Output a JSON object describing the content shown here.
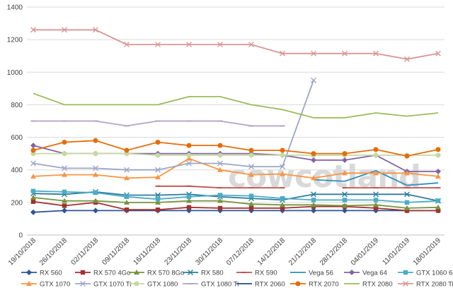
{
  "watermark": "cowcotland",
  "chart_data": {
    "type": "line",
    "ylim": [
      0,
      1400
    ],
    "yticks": [
      0,
      200,
      400,
      600,
      800,
      1000,
      1200,
      1400
    ],
    "grid": "horizontal",
    "legend_position": "bottom",
    "categories": [
      "19/10/2018",
      "26/10/2018",
      "02/11/2018",
      "09/11/2018",
      "16/11/2018",
      "23/11/2018",
      "30/11/2018",
      "07/12/2018",
      "14/12/2018",
      "21/12/2018",
      "28/12/2018",
      "04/01/2019",
      "11/01/2019",
      "18/01/2019"
    ],
    "series": [
      {
        "name": "RX 560",
        "color": "#2F5597",
        "marker": "diamond",
        "values": [
          140,
          150,
          150,
          150,
          150,
          150,
          150,
          150,
          150,
          150,
          150,
          150,
          150,
          150
        ]
      },
      {
        "name": "RX 570 4Go",
        "color": "#A0312E",
        "marker": "square",
        "values": [
          205,
          180,
          200,
          155,
          155,
          170,
          165,
          165,
          165,
          175,
          175,
          165,
          150,
          150
        ]
      },
      {
        "name": "RX 570 8Go",
        "color": "#77933C",
        "marker": "triangle",
        "values": [
          230,
          210,
          210,
          200,
          200,
          210,
          210,
          190,
          185,
          185,
          180,
          185,
          165,
          170
        ]
      },
      {
        "name": "RX 580",
        "color": "#2E7C9C",
        "marker": "x",
        "values": [
          255,
          250,
          265,
          245,
          245,
          250,
          235,
          225,
          215,
          250,
          250,
          250,
          250,
          210
        ]
      },
      {
        "name": "RX 590",
        "color": "#C0504D",
        "marker": "dash",
        "values": [
          null,
          null,
          null,
          null,
          300,
          300,
          290,
          290,
          290,
          null,
          290,
          290,
          290,
          290
        ]
      },
      {
        "name": "Vega 56",
        "color": "#2E8FBF",
        "marker": "line",
        "values": [
          null,
          null,
          null,
          null,
          null,
          null,
          null,
          null,
          null,
          340,
          330,
          395,
          305,
          320
        ]
      },
      {
        "name": "Vega 64",
        "color": "#8064A2",
        "marker": "diamond",
        "values": [
          550,
          500,
          500,
          500,
          500,
          500,
          500,
          500,
          490,
          460,
          460,
          490,
          390,
          390
        ]
      },
      {
        "name": "GTX 1060 6Go",
        "color": "#4BACC6",
        "marker": "square",
        "values": [
          270,
          265,
          260,
          235,
          220,
          235,
          245,
          240,
          225,
          215,
          215,
          215,
          200,
          210
        ]
      },
      {
        "name": "GTX 1070",
        "color": "#F79646",
        "marker": "triangle",
        "values": [
          360,
          370,
          370,
          350,
          355,
          470,
          400,
          370,
          375,
          350,
          380,
          380,
          380,
          360
        ]
      },
      {
        "name": "GTX 1070 Ti",
        "color": "#9BA6C8",
        "marker": "x",
        "values": [
          440,
          410,
          410,
          400,
          400,
          440,
          440,
          420,
          420,
          950,
          null,
          null,
          null,
          null
        ]
      },
      {
        "name": "GTX 1080",
        "color": "#C5D9A0",
        "marker": "circle",
        "values": [
          500,
          500,
          500,
          500,
          490,
          490,
          490,
          490,
          490,
          490,
          490,
          490,
          490,
          490
        ]
      },
      {
        "name": "GTX 1080 Ti",
        "color": "#B3A2C7",
        "marker": "dash",
        "values": [
          700,
          700,
          700,
          670,
          700,
          700,
          700,
          670,
          670,
          null,
          null,
          null,
          null,
          null
        ]
      },
      {
        "name": "RTX 2060",
        "color": "#1F497D",
        "marker": "line",
        "values": [
          null,
          null,
          null,
          null,
          null,
          null,
          null,
          null,
          null,
          null,
          null,
          null,
          null,
          null
        ]
      },
      {
        "name": "RTX 2070",
        "color": "#E46C0A",
        "marker": "circle",
        "values": [
          520,
          570,
          580,
          520,
          570,
          550,
          550,
          520,
          520,
          500,
          500,
          525,
          485,
          525
        ]
      },
      {
        "name": "RTX 2080",
        "color": "#9BBB59",
        "marker": "line",
        "values": [
          870,
          800,
          800,
          800,
          800,
          850,
          850,
          800,
          770,
          720,
          720,
          750,
          730,
          750
        ]
      },
      {
        "name": "RTX 2080 Ti",
        "color": "#D99694",
        "marker": "x",
        "values": [
          1260,
          1260,
          1260,
          1170,
          1170,
          1170,
          1170,
          1170,
          1115,
          1115,
          1115,
          1115,
          1080,
          1115
        ]
      }
    ]
  }
}
